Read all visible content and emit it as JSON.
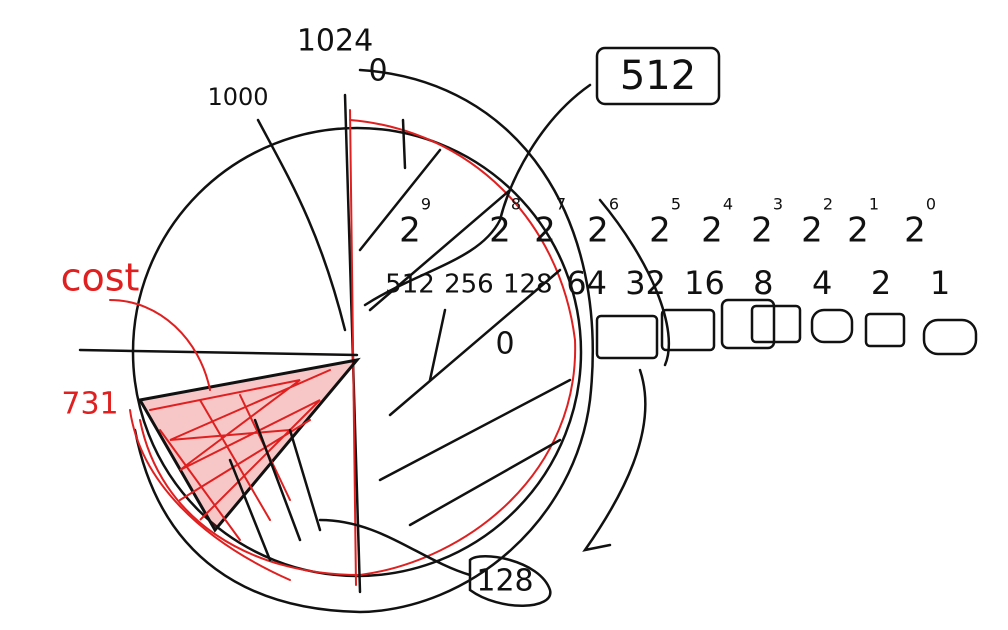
{
  "labels": {
    "top": "1024",
    "zero": "0",
    "left": "1000",
    "boxed": "512",
    "center": "0",
    "cost": "cost",
    "cost_value": "731",
    "bottom": "128"
  },
  "powers": [
    {
      "base": "2",
      "exp": "9"
    },
    {
      "base": "2",
      "exp": "8"
    },
    {
      "base": "2",
      "exp": "7"
    },
    {
      "base": "2",
      "exp": "6"
    },
    {
      "base": "2",
      "exp": "5"
    },
    {
      "base": "2",
      "exp": "4"
    },
    {
      "base": "2",
      "exp": "3"
    },
    {
      "base": "2",
      "exp": "2"
    },
    {
      "base": "2",
      "exp": "1"
    },
    {
      "base": "2",
      "exp": "0"
    }
  ],
  "values": [
    "512",
    "256",
    "128",
    "64",
    "32",
    "16",
    "8",
    "4",
    "2",
    "1"
  ]
}
